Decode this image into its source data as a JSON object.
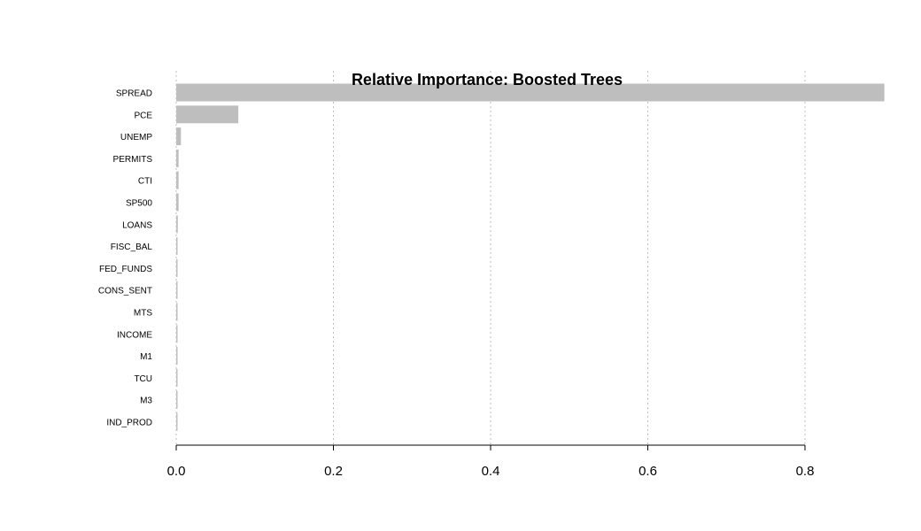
{
  "chart_data": {
    "type": "bar",
    "orientation": "horizontal",
    "title": "Relative Importance: Boosted Trees",
    "xlabel": "",
    "ylabel": "",
    "categories": [
      "SPREAD",
      "PCE",
      "UNEMP",
      "PERMITS",
      "CTI",
      "SP500",
      "LOANS",
      "FISC_BAL",
      "FED_FUNDS",
      "CONS_SENT",
      "MTS",
      "INCOME",
      "M1",
      "TCU",
      "M3",
      "IND_PROD"
    ],
    "values": [
      0.901,
      0.079,
      0.006,
      0.003,
      0.003,
      0.003,
      0.002,
      0.001,
      0.001,
      0.001,
      0.001,
      0.001,
      0.001,
      0.001,
      0.001,
      0.001
    ],
    "xlim": [
      0,
      0.9
    ],
    "xticks": [
      0.0,
      0.2,
      0.4,
      0.6,
      0.8
    ],
    "xtick_labels": [
      "0.0",
      "0.2",
      "0.4",
      "0.6",
      "0.8"
    ],
    "grid": "vertical-dotted",
    "bar_color": "#bebebe",
    "legend": "none"
  }
}
